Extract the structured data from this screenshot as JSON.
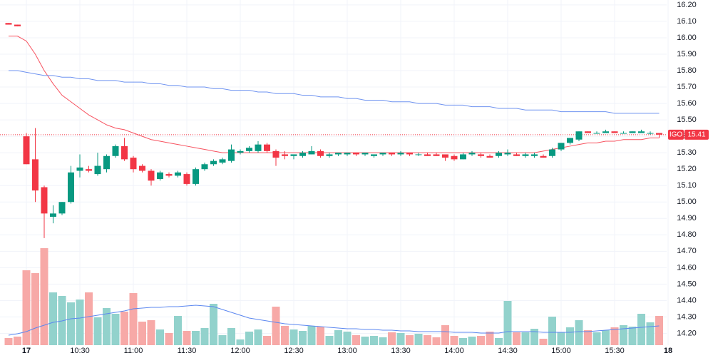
{
  "chart_data": {
    "type": "candlestick",
    "symbol": "IGO",
    "last_price": {
      "value": 15.41,
      "label": "15.41"
    },
    "up_color": "#089981",
    "down_color": "#f23645",
    "volume_up_color": "#92d2cc",
    "volume_down_color": "#f7a9a7",
    "grid": true,
    "ylim": [
      14.05,
      16.23
    ],
    "yticks": [
      {
        "value": 16.2,
        "label": "16.20"
      },
      {
        "value": 16.1,
        "label": "16.10"
      },
      {
        "value": 16.0,
        "label": "16.00"
      },
      {
        "value": 15.9,
        "label": "15.90"
      },
      {
        "value": 15.8,
        "label": "15.80"
      },
      {
        "value": 15.7,
        "label": "15.70"
      },
      {
        "value": 15.6,
        "label": "15.60"
      },
      {
        "value": 15.5,
        "label": "15.50"
      },
      {
        "value": 15.4,
        "label": "15.40"
      },
      {
        "value": 15.3,
        "label": "15.30"
      },
      {
        "value": 15.2,
        "label": "15.20"
      },
      {
        "value": 15.1,
        "label": "15.10"
      },
      {
        "value": 15.0,
        "label": "15.00"
      },
      {
        "value": 14.9,
        "label": "14.90"
      },
      {
        "value": 14.8,
        "label": "14.80"
      },
      {
        "value": 14.7,
        "label": "14.70"
      },
      {
        "value": 14.6,
        "label": "14.60"
      },
      {
        "value": 14.5,
        "label": "14.50"
      },
      {
        "value": 14.4,
        "label": "14.40"
      },
      {
        "value": 14.3,
        "label": "14.30"
      },
      {
        "value": 14.2,
        "label": "14.20"
      }
    ],
    "xticks": [
      {
        "value": 2,
        "label": "17"
      },
      {
        "value": 8,
        "label": "10:30"
      },
      {
        "value": 14,
        "label": "11:00"
      },
      {
        "value": 20,
        "label": "11:30"
      },
      {
        "value": 26,
        "label": "12:00"
      },
      {
        "value": 32,
        "label": "12:30"
      },
      {
        "value": 38,
        "label": "13:00"
      },
      {
        "value": 44,
        "label": "13:30"
      },
      {
        "value": 50,
        "label": "14:00"
      },
      {
        "value": 56,
        "label": "14:30"
      },
      {
        "value": 62,
        "label": "15:00"
      },
      {
        "value": 68,
        "label": "15:30"
      },
      {
        "value": 74,
        "label": "18"
      }
    ],
    "open": [
      16.09,
      16.08,
      15.4,
      15.26,
      15.09,
      14.91,
      14.93,
      15.0,
      15.19,
      15.2,
      15.17,
      15.2,
      15.28,
      15.34,
      15.27,
      15.22,
      15.19,
      15.14,
      15.17,
      15.16,
      15.17,
      15.11,
      15.2,
      15.23,
      15.24,
      15.25,
      15.3,
      15.31,
      15.31,
      15.35,
      15.31,
      15.29,
      15.28,
      15.28,
      15.29,
      15.31,
      15.28,
      15.29,
      15.29,
      15.3,
      15.29,
      15.28,
      15.29,
      15.3,
      15.29,
      15.3,
      15.29,
      15.29,
      15.29,
      15.29,
      15.28,
      15.26,
      15.29,
      15.29,
      15.28,
      15.28,
      15.29,
      15.29,
      15.28,
      15.28,
      15.28,
      15.28,
      15.32,
      15.36,
      15.38,
      15.43,
      15.42,
      15.42,
      15.43,
      15.42,
      15.42,
      15.42,
      15.42,
      15.42
    ],
    "high": [
      16.09,
      16.08,
      15.42,
      15.45,
      15.1,
      14.98,
      15.0,
      15.22,
      15.29,
      15.22,
      15.3,
      15.29,
      15.35,
      15.39,
      15.28,
      15.23,
      15.2,
      15.19,
      15.18,
      15.19,
      15.18,
      15.21,
      15.24,
      15.26,
      15.27,
      15.35,
      15.32,
      15.34,
      15.37,
      15.36,
      15.32,
      15.31,
      15.29,
      15.31,
      15.34,
      15.32,
      15.3,
      15.3,
      15.3,
      15.3,
      15.3,
      15.29,
      15.3,
      15.3,
      15.31,
      15.3,
      15.3,
      15.3,
      15.3,
      15.29,
      15.29,
      15.3,
      15.31,
      15.3,
      15.29,
      15.31,
      15.32,
      15.3,
      15.3,
      15.3,
      15.29,
      15.33,
      15.36,
      15.39,
      15.43,
      15.43,
      15.43,
      15.44,
      15.43,
      15.43,
      15.43,
      15.44,
      15.43,
      15.42
    ],
    "low": [
      16.08,
      16.07,
      15.23,
      15.0,
      14.78,
      14.87,
      14.92,
      14.99,
      15.15,
      15.18,
      15.16,
      15.18,
      15.27,
      15.25,
      15.18,
      15.18,
      15.1,
      15.13,
      15.15,
      15.15,
      15.1,
      15.1,
      15.19,
      15.22,
      15.23,
      15.24,
      15.29,
      15.3,
      15.3,
      15.3,
      15.22,
      15.26,
      15.26,
      15.27,
      15.29,
      15.27,
      15.27,
      15.28,
      15.28,
      15.28,
      15.28,
      15.27,
      15.28,
      15.28,
      15.28,
      15.28,
      15.28,
      15.28,
      15.28,
      15.25,
      15.25,
      15.26,
      15.28,
      15.27,
      15.27,
      15.27,
      15.28,
      15.28,
      15.27,
      15.27,
      15.27,
      15.27,
      15.31,
      15.35,
      15.37,
      15.42,
      15.42,
      15.42,
      15.42,
      15.42,
      15.42,
      15.42,
      15.41,
      15.39
    ],
    "close": [
      16.08,
      16.07,
      15.23,
      15.07,
      14.93,
      14.93,
      15.0,
      15.18,
      15.21,
      15.19,
      15.22,
      15.28,
      15.34,
      15.26,
      15.2,
      15.19,
      15.13,
      15.18,
      15.16,
      15.18,
      15.11,
      15.2,
      15.23,
      15.25,
      15.26,
      15.32,
      15.31,
      15.33,
      15.35,
      15.31,
      15.27,
      15.28,
      15.29,
      15.3,
      15.31,
      15.28,
      15.29,
      15.3,
      15.3,
      15.29,
      15.3,
      15.29,
      15.3,
      15.29,
      15.3,
      15.29,
      15.29,
      15.28,
      15.28,
      15.27,
      15.26,
      15.29,
      15.3,
      15.28,
      15.27,
      15.3,
      15.3,
      15.28,
      15.29,
      15.29,
      15.27,
      15.32,
      15.36,
      15.39,
      15.43,
      15.42,
      15.42,
      15.43,
      15.42,
      15.42,
      15.43,
      15.43,
      15.42,
      15.41
    ],
    "volume": [
      10,
      12,
      105,
      101,
      136,
      74,
      69,
      60,
      64,
      74,
      39,
      52,
      44,
      47,
      73,
      33,
      35,
      22,
      17,
      41,
      20,
      20,
      24,
      58,
      14,
      24,
      8,
      19,
      22,
      13,
      54,
      27,
      22,
      20,
      27,
      26,
      13,
      21,
      19,
      14,
      12,
      13,
      11,
      18,
      17,
      14,
      16,
      14,
      11,
      28,
      13,
      10,
      12,
      13,
      19,
      10,
      62,
      18,
      18,
      23,
      9,
      40,
      18,
      25,
      35,
      21,
      18,
      21,
      25,
      28,
      26,
      44,
      32,
      41
    ],
    "lines": [
      {
        "color": "#f7525f",
        "values": [
          16.01,
          16.01,
          15.98,
          15.9,
          15.8,
          15.72,
          15.65,
          15.61,
          15.57,
          15.53,
          15.5,
          15.47,
          15.45,
          15.44,
          15.42,
          15.4,
          15.38,
          15.37,
          15.36,
          15.35,
          15.34,
          15.33,
          15.32,
          15.31,
          15.3,
          15.3,
          15.3,
          15.3,
          15.3,
          15.3,
          15.3,
          15.3,
          15.3,
          15.3,
          15.3,
          15.3,
          15.3,
          15.3,
          15.3,
          15.3,
          15.3,
          15.3,
          15.3,
          15.3,
          15.3,
          15.3,
          15.3,
          15.3,
          15.3,
          15.3,
          15.3,
          15.3,
          15.3,
          15.3,
          15.3,
          15.3,
          15.3,
          15.3,
          15.3,
          15.3,
          15.31,
          15.32,
          15.33,
          15.34,
          15.35,
          15.36,
          15.36,
          15.37,
          15.37,
          15.38,
          15.38,
          15.38,
          15.39,
          15.39
        ]
      },
      {
        "color": "#6f93f0",
        "values": [
          15.8,
          15.8,
          15.79,
          15.78,
          15.77,
          15.77,
          15.76,
          15.76,
          15.75,
          15.75,
          15.74,
          15.74,
          15.74,
          15.73,
          15.73,
          15.73,
          15.72,
          15.72,
          15.71,
          15.71,
          15.7,
          15.7,
          15.7,
          15.69,
          15.69,
          15.68,
          15.68,
          15.68,
          15.67,
          15.67,
          15.66,
          15.66,
          15.66,
          15.65,
          15.65,
          15.64,
          15.64,
          15.64,
          15.63,
          15.63,
          15.62,
          15.62,
          15.62,
          15.61,
          15.61,
          15.61,
          15.6,
          15.6,
          15.6,
          15.59,
          15.59,
          15.59,
          15.58,
          15.58,
          15.58,
          15.57,
          15.57,
          15.57,
          15.56,
          15.56,
          15.56,
          15.56,
          15.55,
          15.55,
          15.55,
          15.55,
          15.55,
          15.55,
          15.54,
          15.54,
          15.54,
          15.54,
          15.54,
          15.54
        ]
      }
    ],
    "volume_ma": {
      "color": "#5b87f0",
      "values": [
        14,
        16,
        19,
        24,
        28,
        32,
        34,
        37,
        38,
        40,
        42,
        44,
        46,
        48,
        51,
        52,
        53,
        53,
        54,
        54,
        55,
        56,
        55,
        54,
        50,
        46,
        42,
        38,
        36,
        34,
        32,
        30,
        29,
        28,
        27,
        26,
        25,
        24,
        23,
        23,
        22,
        22,
        21,
        21,
        20,
        20,
        19,
        19,
        19,
        19,
        18,
        18,
        18,
        17,
        17,
        17,
        19,
        19,
        19,
        19,
        18,
        18,
        18,
        18,
        19,
        19,
        20,
        21,
        22,
        23,
        24,
        25,
        26,
        27
      ]
    }
  }
}
